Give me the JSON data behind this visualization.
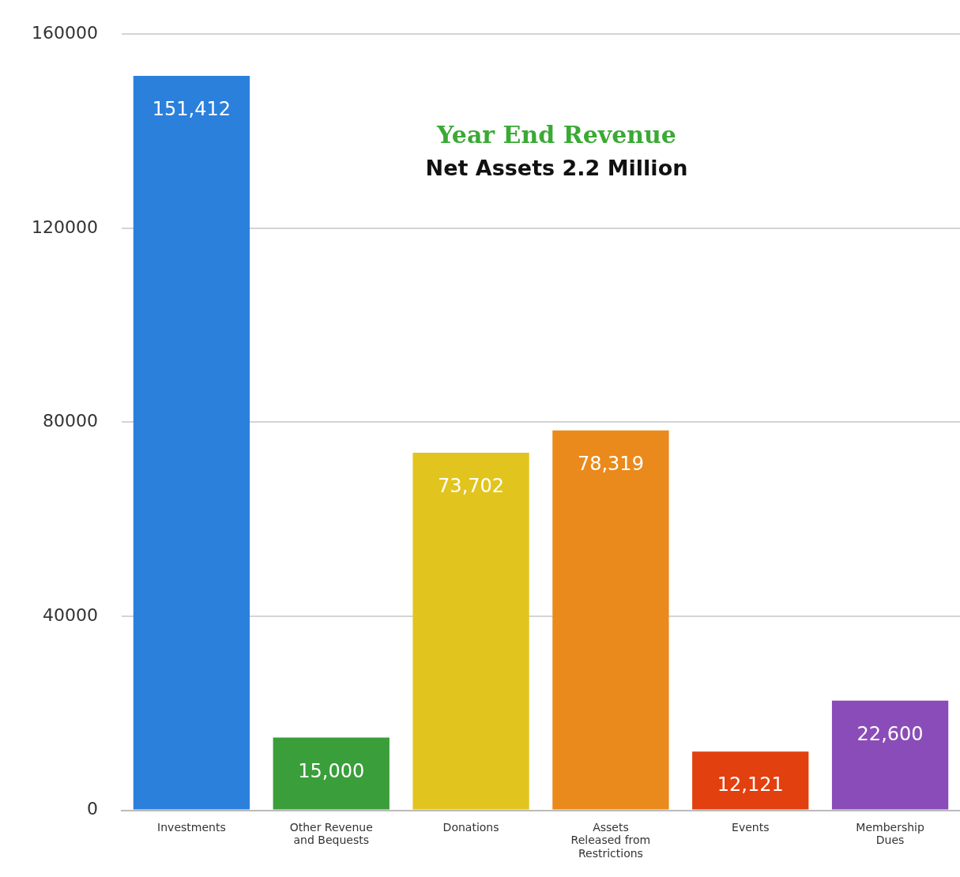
{
  "chart_data": {
    "type": "bar",
    "title": "Year End Revenue",
    "subtitle": "Net Assets 2.2 Million",
    "categories": [
      "Investments",
      "Other Revenue and Bequests",
      "Donations",
      "Assets Released from Restrictions",
      "Events",
      "Membership Dues"
    ],
    "values": [
      151412,
      15000,
      73702,
      78319,
      12121,
      22600
    ],
    "value_labels": [
      "151,412",
      "15,000",
      "73,702",
      "78,319",
      "12,121",
      "22,600"
    ],
    "colors": [
      "#2b80dc",
      "#3a9e3a",
      "#e2c41e",
      "#ea8a1c",
      "#e2400f",
      "#8a4cb8"
    ],
    "ylim": [
      0,
      160000
    ],
    "yticks": [
      0,
      40000,
      80000,
      120000,
      160000
    ],
    "grid": "y",
    "legend": false
  }
}
